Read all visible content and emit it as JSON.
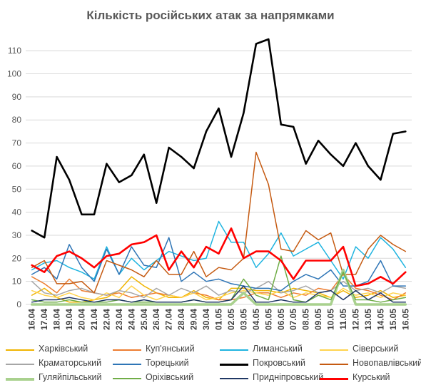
{
  "chart_data": {
    "type": "line",
    "title": "Кількість російських атак за напрямками",
    "ylim": [
      0,
      115
    ],
    "yticks": [
      0,
      10,
      20,
      30,
      40,
      50,
      60,
      70,
      80,
      90,
      100,
      110
    ],
    "grid": true,
    "legend_position": "bottom",
    "categories": [
      "16.04",
      "17.04",
      "18.04",
      "19.04",
      "20.04",
      "21.04",
      "22.04",
      "23.04",
      "24.04",
      "25.04",
      "26.04",
      "27.04",
      "28.04",
      "29.04",
      "30.04",
      "01.05",
      "02.05",
      "03.05",
      "04.05",
      "05.05",
      "06.05",
      "07.05",
      "08.05",
      "09.05",
      "10.05",
      "11.05",
      "12.05",
      "13.05",
      "14.05",
      "15.05",
      "16.05"
    ],
    "series": [
      {
        "name": "Харківський",
        "color": "#f0b400",
        "width": 1.5,
        "values": [
          4,
          7,
          3,
          1,
          1,
          2,
          3,
          6,
          12,
          8,
          5,
          3,
          3,
          6,
          3,
          2,
          7,
          7,
          6,
          6,
          5,
          7,
          6,
          5,
          3,
          6,
          3,
          4,
          6,
          3,
          4
        ]
      },
      {
        "name": "Куп'янський",
        "color": "#ed7d31",
        "width": 1.5,
        "values": [
          12,
          9,
          5,
          11,
          6,
          5,
          4,
          5,
          3,
          4,
          5,
          4,
          3,
          5,
          4,
          2,
          2,
          3,
          5,
          5,
          3,
          5,
          4,
          7,
          6,
          13,
          7,
          6,
          4,
          2,
          5
        ]
      },
      {
        "name": "Лиманський",
        "color": "#1fb4e0",
        "width": 1.5,
        "values": [
          15,
          18,
          19,
          16,
          14,
          11,
          25,
          13,
          20,
          15,
          19,
          23,
          21,
          19,
          20,
          36,
          27,
          27,
          16,
          22,
          31,
          21,
          24,
          27,
          19,
          11,
          25,
          20,
          29,
          24,
          16
        ]
      },
      {
        "name": "Сіверський",
        "color": "#ffd34d",
        "width": 1.5,
        "values": [
          6,
          4,
          3,
          5,
          3,
          2,
          5,
          3,
          8,
          4,
          2,
          4,
          3,
          5,
          2,
          3,
          5,
          6,
          5,
          4,
          6,
          3,
          5,
          4,
          3,
          7,
          4,
          5,
          3,
          5,
          4
        ]
      },
      {
        "name": "Краматорський",
        "color": "#a6a6a6",
        "width": 1.5,
        "values": [
          10,
          5,
          4,
          6,
          7,
          5,
          4,
          6,
          5,
          3,
          7,
          4,
          7,
          5,
          8,
          4,
          6,
          5,
          7,
          10,
          5,
          6,
          8,
          5,
          6,
          10,
          6,
          7,
          5,
          8,
          7
        ]
      },
      {
        "name": "Торецький",
        "color": "#2e75b6",
        "width": 1.5,
        "values": [
          13,
          16,
          11,
          26,
          16,
          10,
          24,
          13,
          25,
          17,
          16,
          29,
          10,
          14,
          10,
          11,
          9,
          8,
          7,
          7,
          6,
          10,
          13,
          11,
          15,
          8,
          8,
          10,
          19,
          8,
          8
        ]
      },
      {
        "name": "Покровський",
        "color": "#000000",
        "width": 2.6,
        "values": [
          32,
          29,
          64,
          54,
          39,
          39,
          61,
          53,
          56,
          65,
          44,
          68,
          64,
          59,
          75,
          85,
          64,
          83,
          113,
          115,
          78,
          77,
          61,
          71,
          65,
          60,
          70,
          60,
          54,
          74,
          75
        ]
      },
      {
        "name": "Новопавлівський",
        "color": "#c55a11",
        "width": 1.5,
        "values": [
          16,
          19,
          9,
          9,
          10,
          5,
          19,
          17,
          15,
          12,
          19,
          13,
          13,
          23,
          12,
          16,
          15,
          20,
          66,
          52,
          24,
          23,
          32,
          28,
          31,
          13,
          13,
          24,
          30,
          26,
          23
        ]
      },
      {
        "name": "Гуляйпільський",
        "color": "#a9d18e",
        "width": 3.5,
        "values": [
          0,
          0,
          0,
          0,
          0,
          0,
          0,
          0,
          0,
          0,
          0,
          0,
          0,
          0,
          0,
          0,
          0,
          5,
          0,
          0,
          0,
          0,
          0,
          0,
          0,
          15,
          0,
          0,
          0,
          0,
          0
        ]
      },
      {
        "name": "Оріхівський",
        "color": "#70ad47",
        "width": 1.5,
        "values": [
          2,
          1,
          1,
          2,
          1,
          1,
          1,
          2,
          1,
          1,
          1,
          1,
          1,
          2,
          1,
          1,
          2,
          11,
          4,
          2,
          21,
          2,
          1,
          4,
          2,
          14,
          2,
          2,
          1,
          2,
          3
        ]
      },
      {
        "name": "Придніпровський",
        "color": "#203864",
        "width": 1.5,
        "values": [
          1,
          2,
          2,
          3,
          2,
          1,
          2,
          2,
          1,
          2,
          1,
          1,
          1,
          2,
          1,
          1,
          2,
          8,
          1,
          1,
          2,
          1,
          1,
          5,
          6,
          2,
          6,
          2,
          5,
          1,
          1
        ]
      },
      {
        "name": "Курський",
        "color": "#ff0000",
        "width": 2.6,
        "values": [
          17,
          14,
          21,
          23,
          20,
          16,
          21,
          22,
          26,
          27,
          30,
          15,
          23,
          16,
          25,
          22,
          33,
          20,
          23,
          23,
          19,
          11,
          19,
          19,
          19,
          25,
          8,
          9,
          12,
          9,
          14
        ]
      }
    ]
  }
}
